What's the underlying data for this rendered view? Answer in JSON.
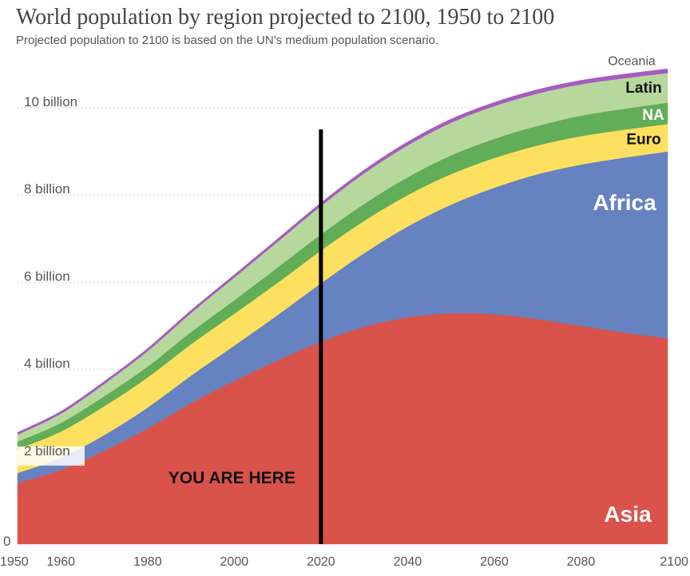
{
  "title": "World population by region projected to 2100, 1950 to 2100",
  "subtitle": "Projected population to 2100 is based on the UN's medium population scenario.",
  "chart_data": {
    "type": "area",
    "stacked": true,
    "x": [
      1950,
      1960,
      1970,
      1980,
      1990,
      2000,
      2010,
      2020,
      2030,
      2040,
      2050,
      2060,
      2070,
      2080,
      2090,
      2100
    ],
    "xticks": [
      1950,
      1960,
      1980,
      2000,
      2020,
      2040,
      2060,
      2080,
      2100
    ],
    "yticks": [
      0,
      2,
      4,
      6,
      8,
      10
    ],
    "ytick_labels": [
      "0",
      "2 billion",
      "4 billion",
      "6 billion",
      "8 billion",
      "10 billion"
    ],
    "ylim": [
      0,
      11
    ],
    "series": [
      {
        "name": "Asia",
        "color": "#d9534a",
        "values": [
          1.4,
          1.7,
          2.14,
          2.65,
          3.23,
          3.74,
          4.21,
          4.64,
          4.98,
          5.2,
          5.29,
          5.27,
          5.16,
          5.0,
          4.85,
          4.72
        ]
      },
      {
        "name": "Africa",
        "color": "#6682c0",
        "values": [
          0.23,
          0.28,
          0.36,
          0.48,
          0.63,
          0.81,
          1.04,
          1.34,
          1.69,
          2.08,
          2.49,
          2.9,
          3.32,
          3.7,
          4.01,
          4.28
        ]
      },
      {
        "name": "Euro",
        "color": "#fde05f",
        "values": [
          0.55,
          0.6,
          0.66,
          0.69,
          0.72,
          0.73,
          0.74,
          0.75,
          0.74,
          0.72,
          0.7,
          0.68,
          0.66,
          0.65,
          0.64,
          0.63
        ]
      },
      {
        "name": "NA",
        "color": "#62ad58",
        "values": [
          0.17,
          0.2,
          0.23,
          0.25,
          0.28,
          0.31,
          0.35,
          0.37,
          0.39,
          0.41,
          0.43,
          0.44,
          0.45,
          0.47,
          0.48,
          0.49
        ]
      },
      {
        "name": "Latin",
        "color": "#b7d89c",
        "values": [
          0.17,
          0.22,
          0.29,
          0.36,
          0.44,
          0.52,
          0.59,
          0.65,
          0.7,
          0.73,
          0.75,
          0.75,
          0.74,
          0.72,
          0.7,
          0.68
        ]
      },
      {
        "name": "Oceania",
        "color": "#a55cc0",
        "values": [
          0.013,
          0.016,
          0.02,
          0.023,
          0.027,
          0.031,
          0.037,
          0.043,
          0.048,
          0.053,
          0.057,
          0.061,
          0.064,
          0.067,
          0.07,
          0.072
        ]
      }
    ],
    "marker_x": 2020,
    "marker_label": "YOU ARE HERE"
  }
}
